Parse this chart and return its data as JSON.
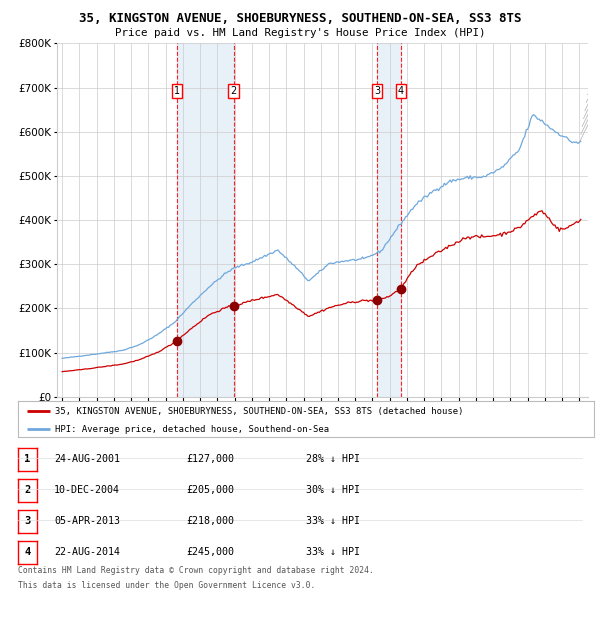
{
  "title": "35, KINGSTON AVENUE, SHOEBURYNESS, SOUTHEND-ON-SEA, SS3 8TS",
  "subtitle": "Price paid vs. HM Land Registry's House Price Index (HPI)",
  "hpi_color": "#6fa8dc",
  "price_color": "#cc0000",
  "marker_color": "#8b0000",
  "background_color": "#ffffff",
  "grid_color": "#cccccc",
  "shade_color": "#dce9f5",
  "transactions": [
    {
      "label": "1",
      "date": "2001-08-24",
      "price": 127000,
      "x_num": 2001.645
    },
    {
      "label": "2",
      "date": "2004-12-10",
      "price": 205000,
      "x_num": 2004.94
    },
    {
      "label": "3",
      "date": "2013-04-05",
      "price": 218000,
      "x_num": 2013.26
    },
    {
      "label": "4",
      "date": "2014-08-22",
      "price": 245000,
      "x_num": 2014.641
    }
  ],
  "table_rows": [
    {
      "num": "1",
      "date": "24-AUG-2001",
      "price": "£127,000",
      "note": "28% ↓ HPI"
    },
    {
      "num": "2",
      "date": "10-DEC-2004",
      "price": "£205,000",
      "note": "30% ↓ HPI"
    },
    {
      "num": "3",
      "date": "05-APR-2013",
      "price": "£218,000",
      "note": "33% ↓ HPI"
    },
    {
      "num": "4",
      "date": "22-AUG-2014",
      "price": "£245,000",
      "note": "33% ↓ HPI"
    }
  ],
  "legend_line1": "35, KINGSTON AVENUE, SHOEBURYNESS, SOUTHEND-ON-SEA, SS3 8TS (detached house)",
  "legend_line2": "HPI: Average price, detached house, Southend-on-Sea",
  "footnote1": "Contains HM Land Registry data © Crown copyright and database right 2024.",
  "footnote2": "This data is licensed under the Open Government Licence v3.0.",
  "ylim": [
    0,
    800000
  ],
  "yticks": [
    0,
    100000,
    200000,
    300000,
    400000,
    500000,
    600000,
    700000,
    800000
  ],
  "xlim_start": 1994.7,
  "xlim_end": 2025.5
}
